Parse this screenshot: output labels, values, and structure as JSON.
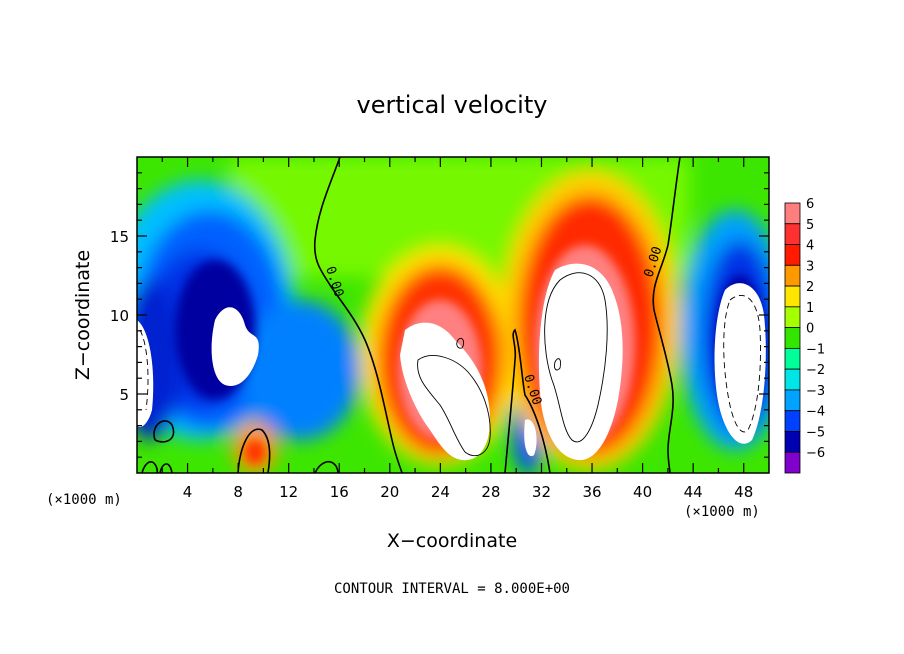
{
  "chart_data": {
    "type": "heatmap",
    "title": "vertical velocity",
    "xlabel": "X−coordinate",
    "ylabel": "Z−coordinate",
    "x_units": "(×1000 m)",
    "y_units": "(×1000 m)",
    "footnote": "CONTOUR INTERVAL = 8.000E+00",
    "xlim": [
      0,
      50
    ],
    "ylim": [
      0,
      20
    ],
    "x_ticks": [
      4,
      8,
      12,
      16,
      20,
      24,
      28,
      32,
      36,
      40,
      44,
      48
    ],
    "x_tick_labels": [
      "4",
      "8",
      "12",
      "16",
      "20",
      "24",
      "28",
      "32",
      "36",
      "40",
      "44",
      "48"
    ],
    "y_ticks": [
      5,
      10,
      15
    ],
    "y_tick_labels": [
      "5",
      "10",
      "15"
    ],
    "contour_labels": [
      {
        "text": "0.00",
        "x": 15.5,
        "z": 12.5
      },
      {
        "text": "0.00",
        "x": 30.4,
        "z": 5.2
      },
      {
        "text": "0.00",
        "x": 41.0,
        "z": 13.3
      }
    ],
    "colorbar": {
      "levels": [
        6,
        5,
        4,
        3,
        2,
        1,
        0,
        -1,
        -2,
        -3,
        -4,
        -5,
        -6
      ],
      "labels": [
        "6",
        "5",
        "4",
        "3",
        "2",
        "1",
        "0",
        "−1",
        "−2",
        "−3",
        "−4",
        "−5",
        "−6"
      ],
      "colors": [
        "#ff7f7f",
        "#ff3030",
        "#ff1a00",
        "#ff9900",
        "#ffe600",
        "#a6ff00",
        "#33e600",
        "#00ff99",
        "#00e6e6",
        "#00a3ff",
        "#0040ff",
        "#0000b3",
        "#8000cc"
      ]
    },
    "features": [
      {
        "kind": "updraft",
        "x": 24.5,
        "z": 7,
        "peak": 8
      },
      {
        "kind": "updraft",
        "x": 35,
        "z": 9,
        "peak": 9
      },
      {
        "kind": "downdraft",
        "x": 8,
        "z": 9,
        "peak": -8
      },
      {
        "kind": "downdraft",
        "x": 47,
        "z": 8,
        "peak": -7
      },
      {
        "kind": "downdraft",
        "x": 30.5,
        "z": 3,
        "peak": -6
      }
    ]
  }
}
